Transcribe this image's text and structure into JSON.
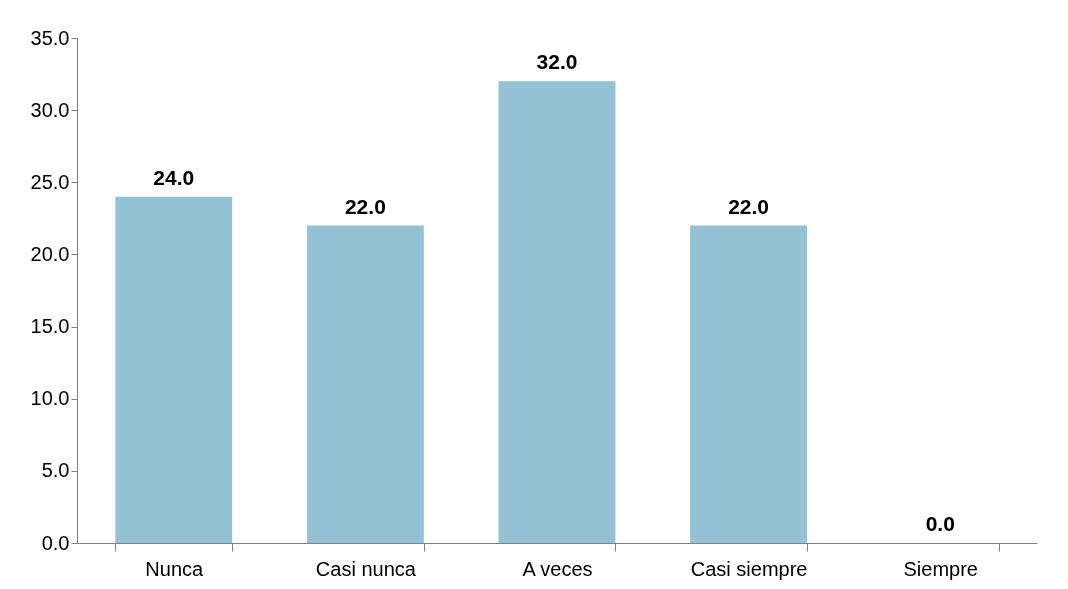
{
  "chart_data": {
    "type": "bar",
    "categories": [
      "Nunca",
      "Casi nunca",
      "A veces",
      "Casi siempre",
      "Siempre"
    ],
    "values": [
      24,
      22,
      32,
      22,
      0
    ],
    "value_labels": [
      "24.0",
      "22.0",
      "32.0",
      "22.0",
      "0.0"
    ],
    "color": "#93c2d4",
    "ylim": [
      0,
      35
    ],
    "yticks": [
      {
        "value": 0,
        "label": "0.0"
      },
      {
        "value": 5,
        "label": "5.0"
      },
      {
        "value": 10,
        "label": "10.0"
      },
      {
        "value": 15,
        "label": "15.0"
      },
      {
        "value": 20,
        "label": "20.0"
      },
      {
        "value": 25,
        "label": "25.0"
      },
      {
        "value": 30,
        "label": "30.0"
      },
      {
        "value": 35,
        "label": "35.0"
      }
    ],
    "grid": false
  }
}
